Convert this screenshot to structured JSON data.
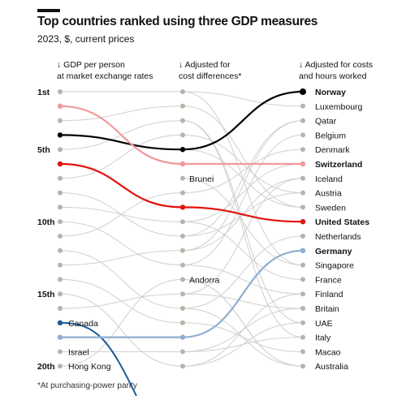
{
  "header": {
    "title": "Top countries ranked using three GDP measures",
    "subtitle": "2023, $, current prices"
  },
  "columns": [
    "↓ GDP per person\nat market exchange rates",
    "↓ Adjusted for\ncost differences*",
    "↓ Adjusted for costs\nand hours worked"
  ],
  "footnote": "*At purchasing-power parity",
  "chart_data": {
    "type": "slope",
    "y_rank_labels": [
      {
        "rank": 1,
        "label": "1st"
      },
      {
        "rank": 5,
        "label": "5th"
      },
      {
        "rank": 10,
        "label": "10th"
      },
      {
        "rank": 15,
        "label": "15th"
      },
      {
        "rank": 20,
        "label": "20th"
      }
    ],
    "ranks_shown": 20,
    "col1_labels": [
      {
        "rank": 17,
        "name": "Canada"
      },
      {
        "rank": 19,
        "name": "Israel"
      },
      {
        "rank": 20,
        "name": "Hong Kong"
      }
    ],
    "col2_labels": [
      {
        "rank": 7,
        "name": "Brunei"
      },
      {
        "rank": 14,
        "name": "Andorra"
      }
    ],
    "col3_labels": [
      "Norway",
      "Luxembourg",
      "Qatar",
      "Belgium",
      "Denmark",
      "Switzerland",
      "Iceland",
      "Austria",
      "Sweden",
      "United States",
      "Netherlands",
      "Germany",
      "Singapore",
      "France",
      "Finland",
      "Britain",
      "UAE",
      "Italy",
      "Macao",
      "Australia"
    ],
    "highlighted": [
      {
        "name": "Norway",
        "ranks": [
          4,
          5,
          1
        ],
        "color": "#000000"
      },
      {
        "name": "Switzerland",
        "ranks": [
          2,
          6,
          6
        ],
        "color": "#f0999b"
      },
      {
        "name": "United States",
        "ranks": [
          6,
          9,
          10
        ],
        "color": "#e3120b"
      },
      {
        "name": "Germany",
        "ranks": [
          18,
          18,
          12
        ],
        "color": "#8eaed0"
      },
      {
        "name": "Canada",
        "ranks": [
          17,
          null,
          null
        ],
        "color": "#1f5c99"
      }
    ],
    "grey_lines": [
      [
        1,
        1,
        2
      ],
      [
        3,
        2,
        9
      ],
      [
        5,
        3,
        17
      ],
      [
        7,
        4,
        8
      ],
      [
        8,
        11,
        3
      ],
      [
        9,
        10,
        14
      ],
      [
        10,
        13,
        4
      ],
      [
        11,
        8,
        5
      ],
      [
        12,
        16,
        11
      ],
      [
        13,
        12,
        7
      ],
      [
        14,
        17,
        19
      ],
      [
        15,
        20,
        15
      ],
      [
        16,
        15,
        16
      ],
      [
        19,
        19,
        18
      ],
      [
        20,
        14,
        20
      ]
    ],
    "grey_partial": [
      [
        null,
        7,
        13
      ],
      [
        null,
        14,
        20
      ],
      [
        null,
        1,
        13
      ],
      [
        null,
        3,
        18
      ],
      [
        null,
        19,
        16
      ],
      [
        null,
        10,
        6
      ],
      [
        null,
        20,
        17
      ],
      [
        null,
        13,
        15
      ],
      [
        null,
        5,
        9
      ],
      [
        null,
        15,
        7
      ],
      [
        null,
        11,
        8
      ],
      [
        null,
        16,
        20
      ],
      [
        null,
        12,
        3
      ]
    ],
    "dot_color": "#b5b5a8",
    "grey_line_color": "#cfcfcf"
  }
}
